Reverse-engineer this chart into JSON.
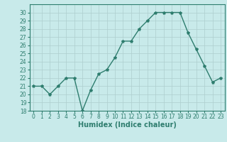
{
  "x": [
    0,
    1,
    2,
    3,
    4,
    5,
    6,
    7,
    8,
    9,
    10,
    11,
    12,
    13,
    14,
    15,
    16,
    17,
    18,
    19,
    20,
    21,
    22,
    23
  ],
  "y": [
    21,
    21,
    20,
    21,
    22,
    22,
    18,
    20.5,
    22.5,
    23,
    24.5,
    26.5,
    26.5,
    28,
    29,
    30,
    30,
    30,
    30,
    27.5,
    25.5,
    23.5,
    21.5,
    22
  ],
  "line_color": "#2e7d6e",
  "marker": "*",
  "marker_size": 3,
  "bg_color": "#c8eaea",
  "grid_color": "#aecece",
  "xlabel": "Humidex (Indice chaleur)",
  "ylim": [
    18,
    31
  ],
  "xlim": [
    -0.5,
    23.5
  ],
  "yticks": [
    18,
    19,
    20,
    21,
    22,
    23,
    24,
    25,
    26,
    27,
    28,
    29,
    30
  ],
  "xticks": [
    0,
    1,
    2,
    3,
    4,
    5,
    6,
    7,
    8,
    9,
    10,
    11,
    12,
    13,
    14,
    15,
    16,
    17,
    18,
    19,
    20,
    21,
    22,
    23
  ],
  "tick_labelsize": 5.5,
  "xlabel_fontsize": 7,
  "linewidth": 1.0
}
